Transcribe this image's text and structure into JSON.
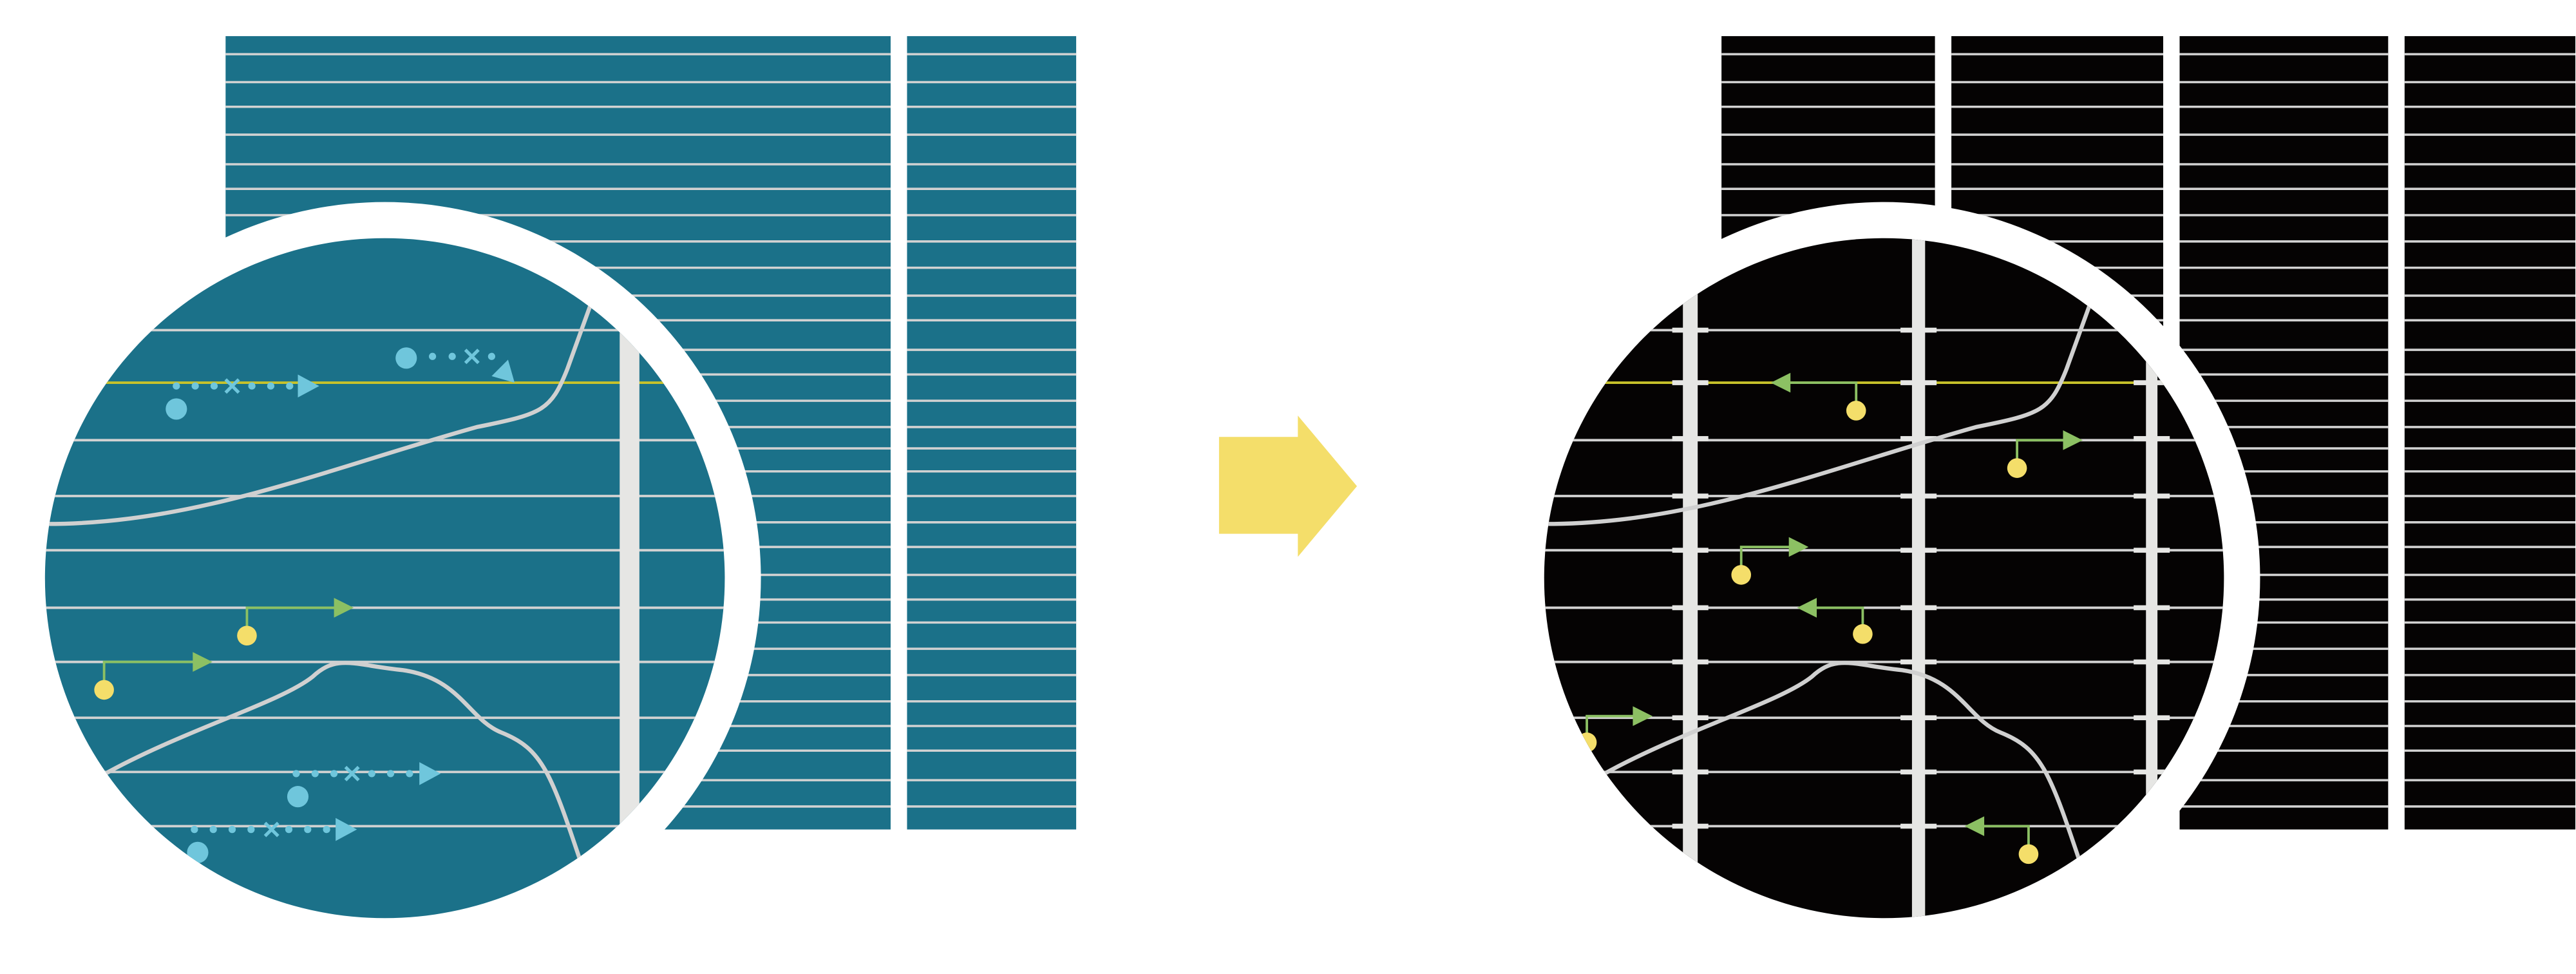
{
  "colors": {
    "background": "#ffffff",
    "before_fill": "#1b7189",
    "after_fill": "#050303",
    "grid_line": "#d2d2d2",
    "highlight_line": "#c8c22a",
    "vertical_band": "#e6e6e4",
    "blue_marker": "#6fc6dc",
    "green_arrow": "#8cc063",
    "yellow_dot": "#f4de6a",
    "transition_arrow": "#f4de6a",
    "curve": "#d0d0d0"
  },
  "transition_arrow": {
    "icon": "right-arrow-icon",
    "direction": "right"
  }
}
